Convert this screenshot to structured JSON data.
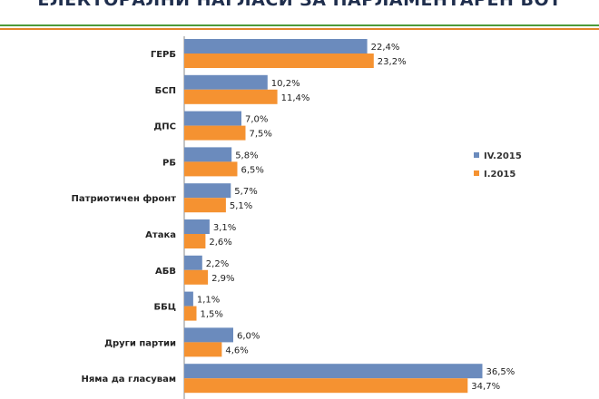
{
  "title": "ЕЛЕКТОРАЛНИ НАГЛАСИ ЗА ПАРЛАМЕНТАРЕН ВОТ",
  "chart_data": {
    "type": "bar",
    "orientation": "horizontal",
    "categories": [
      "ГЕРБ",
      "БСП",
      "ДПС",
      "РБ",
      "Патриотичен фронт",
      "Атака",
      "АБВ",
      "ББЦ",
      "Други партии",
      "Няма да гласувам"
    ],
    "series": [
      {
        "name": "IV.2015",
        "color": "#6b8bbd",
        "values": [
          22.4,
          10.2,
          7.0,
          5.8,
          5.7,
          3.1,
          2.2,
          1.1,
          6.0,
          36.5
        ],
        "labels": [
          "22,4%",
          "10,2%",
          "7,0%",
          "5,8%",
          "5,7%",
          "3,1%",
          "2,2%",
          "1,1%",
          "6,0%",
          "36,5%"
        ]
      },
      {
        "name": "I.2015",
        "color": "#f59231",
        "values": [
          23.2,
          11.4,
          7.5,
          6.5,
          5.1,
          2.6,
          2.9,
          1.5,
          4.6,
          34.7
        ],
        "labels": [
          "23,2%",
          "11,4%",
          "7,5%",
          "6,5%",
          "5,1%",
          "2,6%",
          "2,9%",
          "1,5%",
          "4,6%",
          "34,7%"
        ]
      }
    ],
    "legend_position": "right",
    "grid": false
  }
}
